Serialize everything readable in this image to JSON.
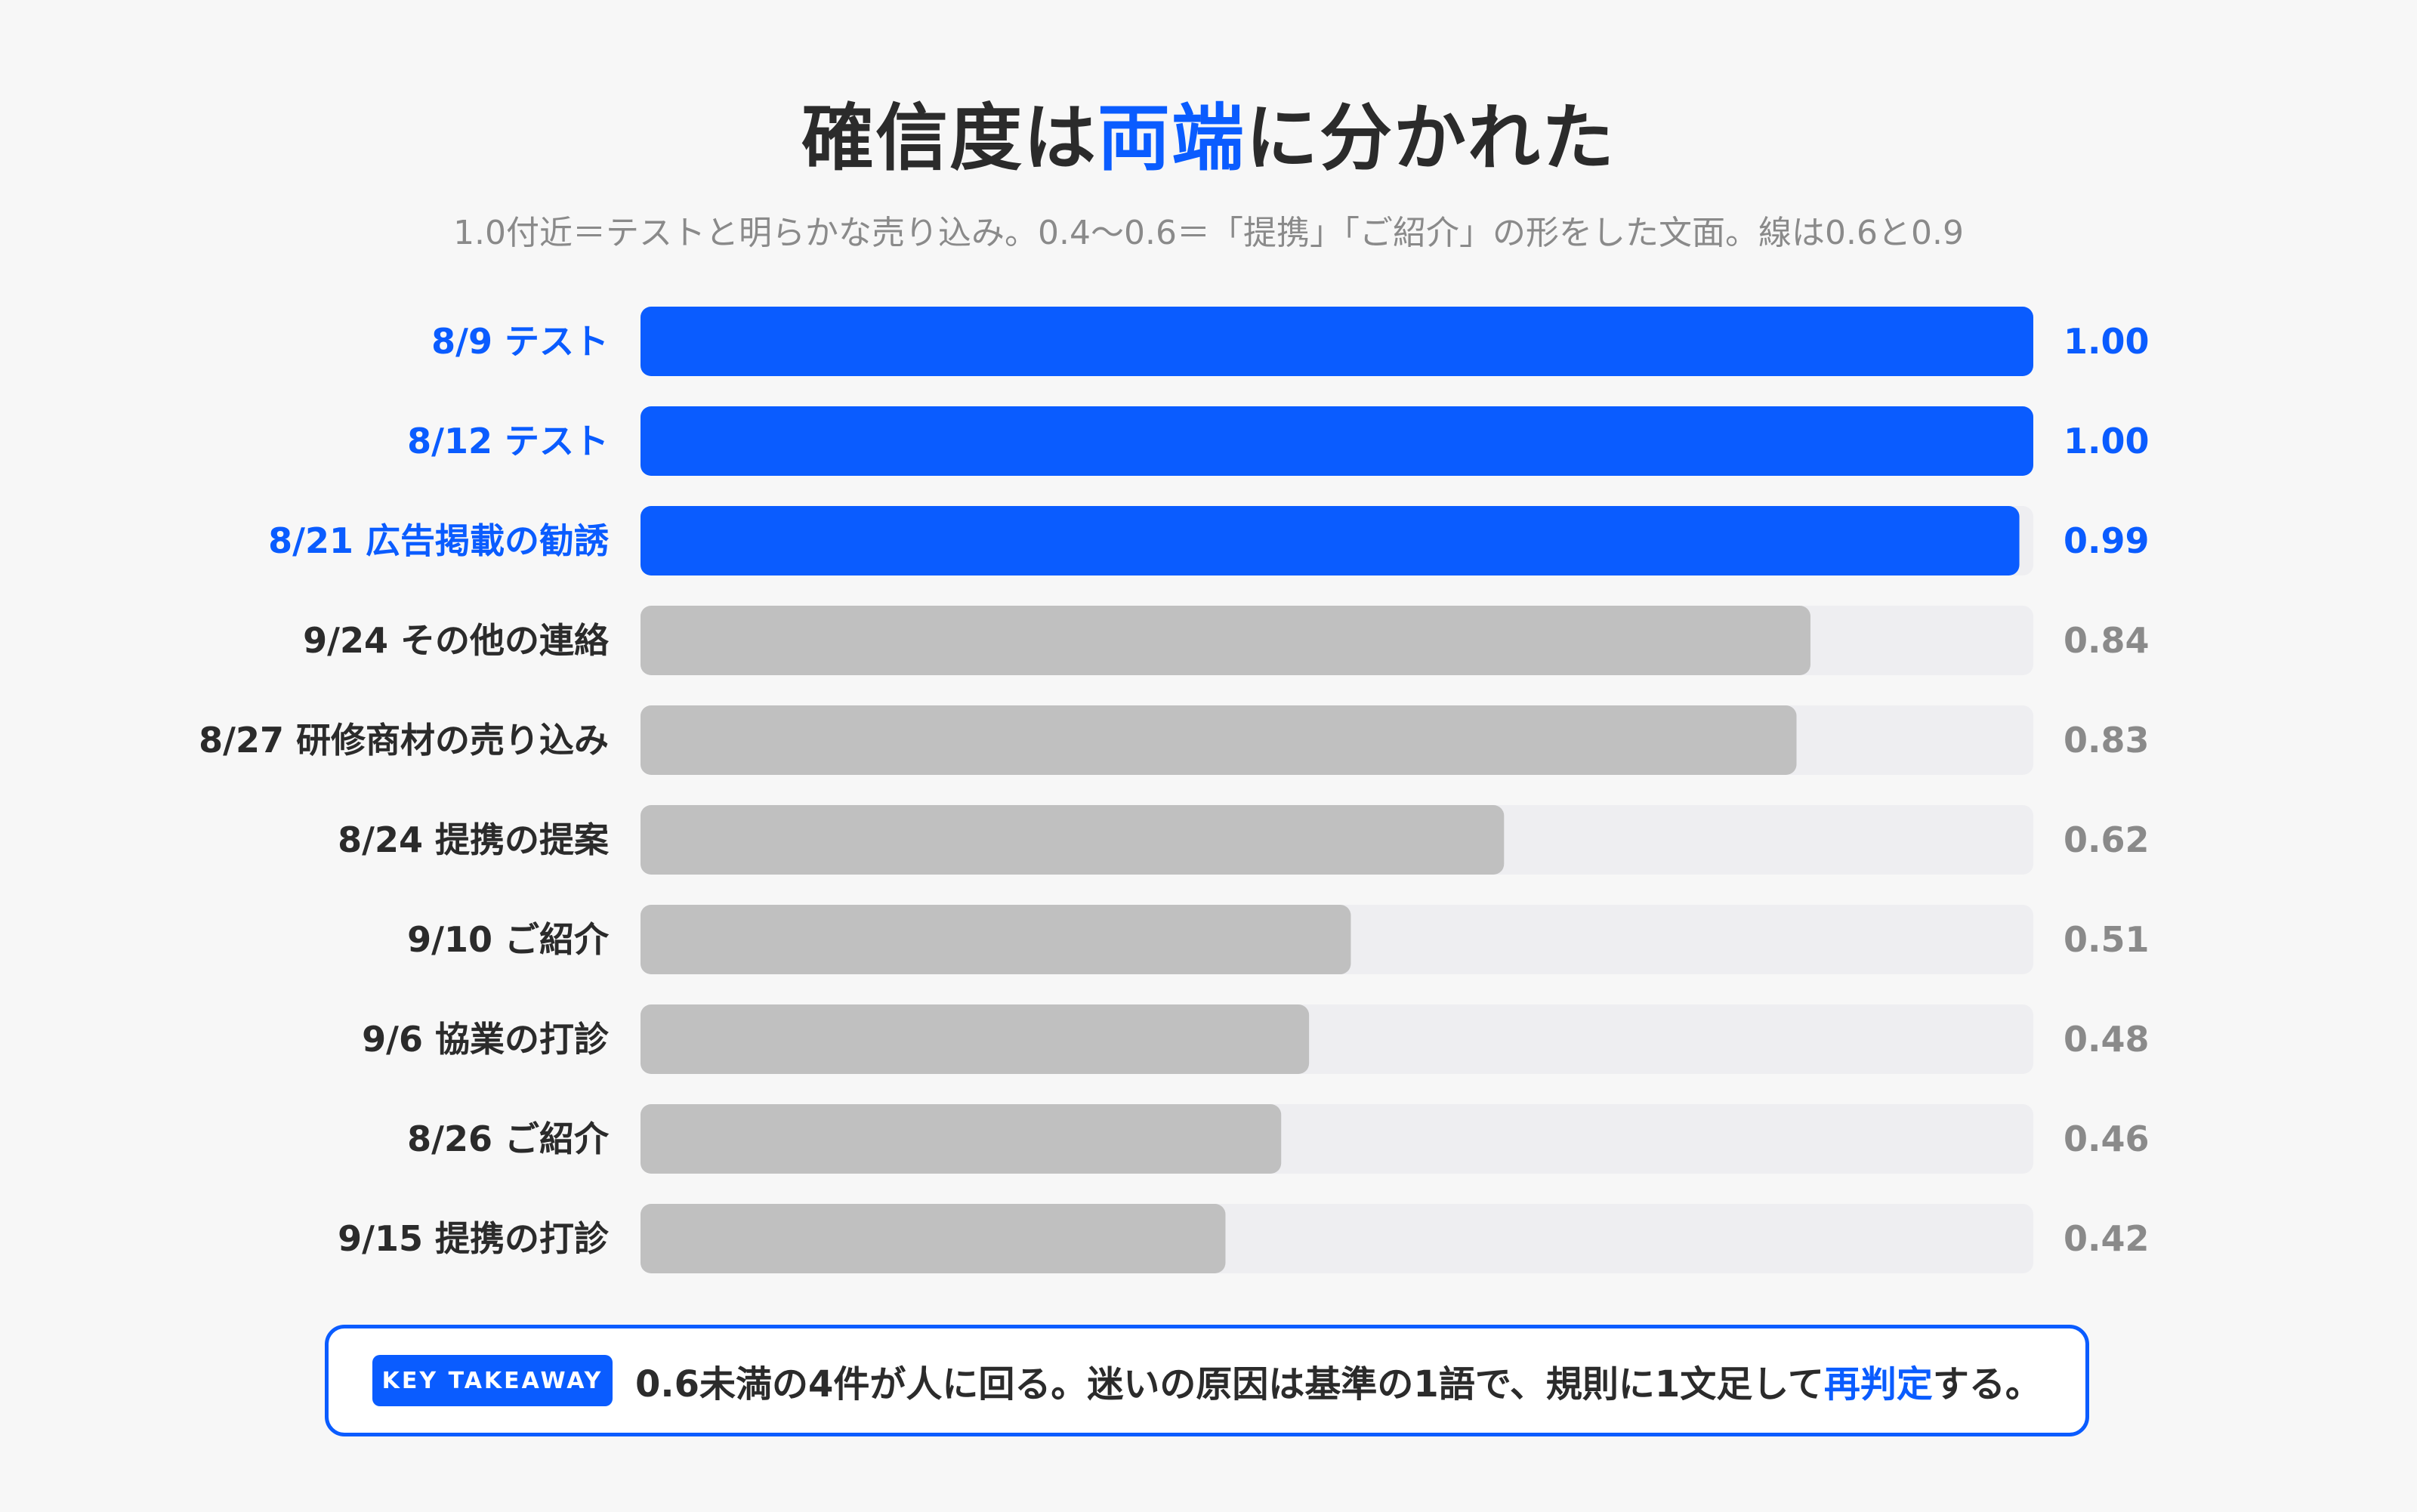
{
  "chart_data": {
    "type": "bar",
    "orientation": "horizontal",
    "title_parts": [
      "確信度は",
      "両端",
      "に分かれた"
    ],
    "subtitle": "1.0付近＝テストと明らかな売り込み。0.4〜0.6＝「提携」「ご紹介」の形をした文面。線は0.6と0.9",
    "categories": [
      "8/9 テスト",
      "8/12 テスト",
      "8/21 広告掲載の勧誘",
      "9/24 その他の連絡",
      "8/27 研修商材の売り込み",
      "8/24 提携の提案",
      "9/10 ご紹介",
      "9/6 協業の打診",
      "8/26 ご紹介",
      "9/15 提携の打診"
    ],
    "values": [
      1.0,
      1.0,
      0.99,
      0.84,
      0.83,
      0.62,
      0.51,
      0.48,
      0.46,
      0.42
    ],
    "value_labels": [
      "1.00",
      "1.00",
      "0.99",
      "0.84",
      "0.83",
      "0.62",
      "0.51",
      "0.48",
      "0.46",
      "0.42"
    ],
    "highlighted": [
      true,
      true,
      true,
      false,
      false,
      false,
      false,
      false,
      false,
      false
    ],
    "xlim": [
      0,
      1
    ],
    "grid": false,
    "colors": {
      "highlight": "#0a5cff",
      "normal": "#c0c0c0",
      "track": "#eeeef1",
      "highlight_label": "#0a5cff",
      "normal_label": "#2b2b2b",
      "normal_value": "#8a8a8a"
    }
  },
  "takeaway": {
    "badge": "KEY TAKEAWAY",
    "text_before": "0.6未満の4件が人に回る。迷いの原因は基準の1語で、規則に1文足して",
    "text_accent": "再判定",
    "text_after": "する。"
  }
}
